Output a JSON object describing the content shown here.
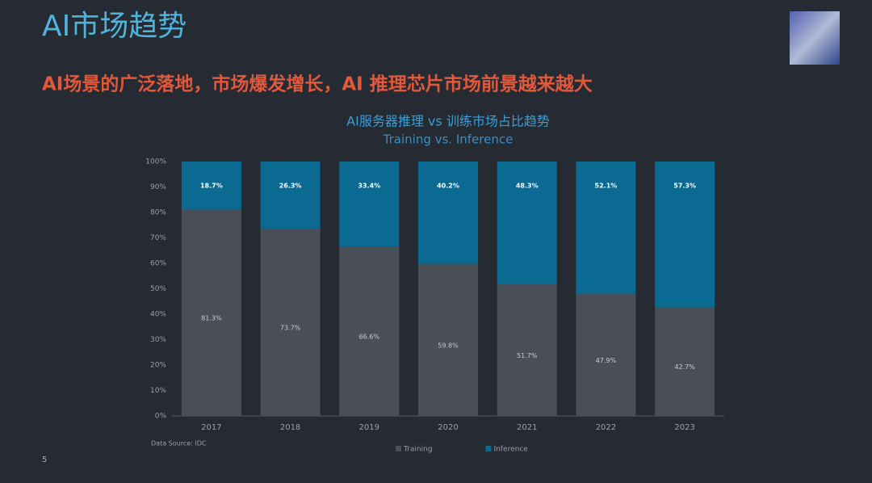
{
  "slide": {
    "title": "AI市场趋势",
    "subtitle": "AI场景的广泛落地，市场爆发增长，AI 推理芯片市场前景越来越大",
    "source": "Data Source: IDC",
    "page": "5"
  },
  "chart_data": {
    "type": "stacked_bar",
    "title": "AI服务器推理 vs 训练市场占比趋势",
    "subtitle": "Training vs. Inference",
    "categories": [
      "2017",
      "2018",
      "2019",
      "2020",
      "2021",
      "2022",
      "2023"
    ],
    "series": [
      {
        "name": "Training",
        "color": "#4a4f57",
        "values": [
          81.3,
          73.7,
          66.6,
          59.8,
          51.7,
          47.9,
          42.7
        ],
        "value_labels": [
          "81.3%",
          "73.7%",
          "66.6%",
          "59.8%",
          "51.7%",
          "47.9%",
          "42.7%"
        ]
      },
      {
        "name": "Inference",
        "color": "#0b6a92",
        "values": [
          18.7,
          26.3,
          33.4,
          40.2,
          48.3,
          52.1,
          57.3
        ],
        "value_labels": [
          "18.7%",
          "26.3%",
          "33.4%",
          "40.2%",
          "48.3%",
          "52.1%",
          "57.3%"
        ]
      }
    ],
    "ylim": [
      0,
      100
    ],
    "yticks": [
      {
        "value": 0,
        "label": "0%"
      },
      {
        "value": 10,
        "label": "10%"
      },
      {
        "value": 20,
        "label": "20%"
      },
      {
        "value": 30,
        "label": "30%"
      },
      {
        "value": 40,
        "label": "40%"
      },
      {
        "value": 50,
        "label": "50%"
      },
      {
        "value": 60,
        "label": "60%"
      },
      {
        "value": 70,
        "label": "70%"
      },
      {
        "value": 80,
        "label": "80%"
      },
      {
        "value": 90,
        "label": "90%"
      },
      {
        "value": 100,
        "label": "100%"
      }
    ],
    "legend": "bottom"
  }
}
